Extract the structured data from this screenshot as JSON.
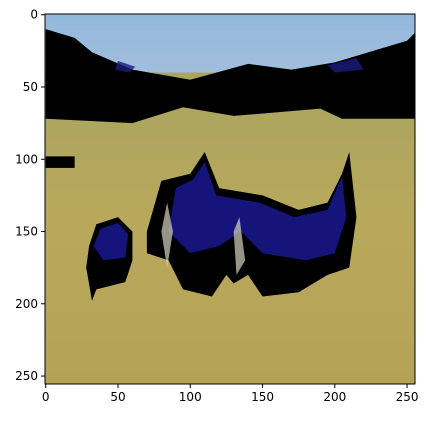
{
  "chart_data": {
    "type": "image",
    "xlim": [
      -0.5,
      255.5
    ],
    "ylim": [
      255.5,
      -0.5
    ],
    "xticks": [
      0,
      50,
      100,
      150,
      200,
      250
    ],
    "yticks": [
      0,
      50,
      100,
      150,
      200,
      250
    ]
  }
}
